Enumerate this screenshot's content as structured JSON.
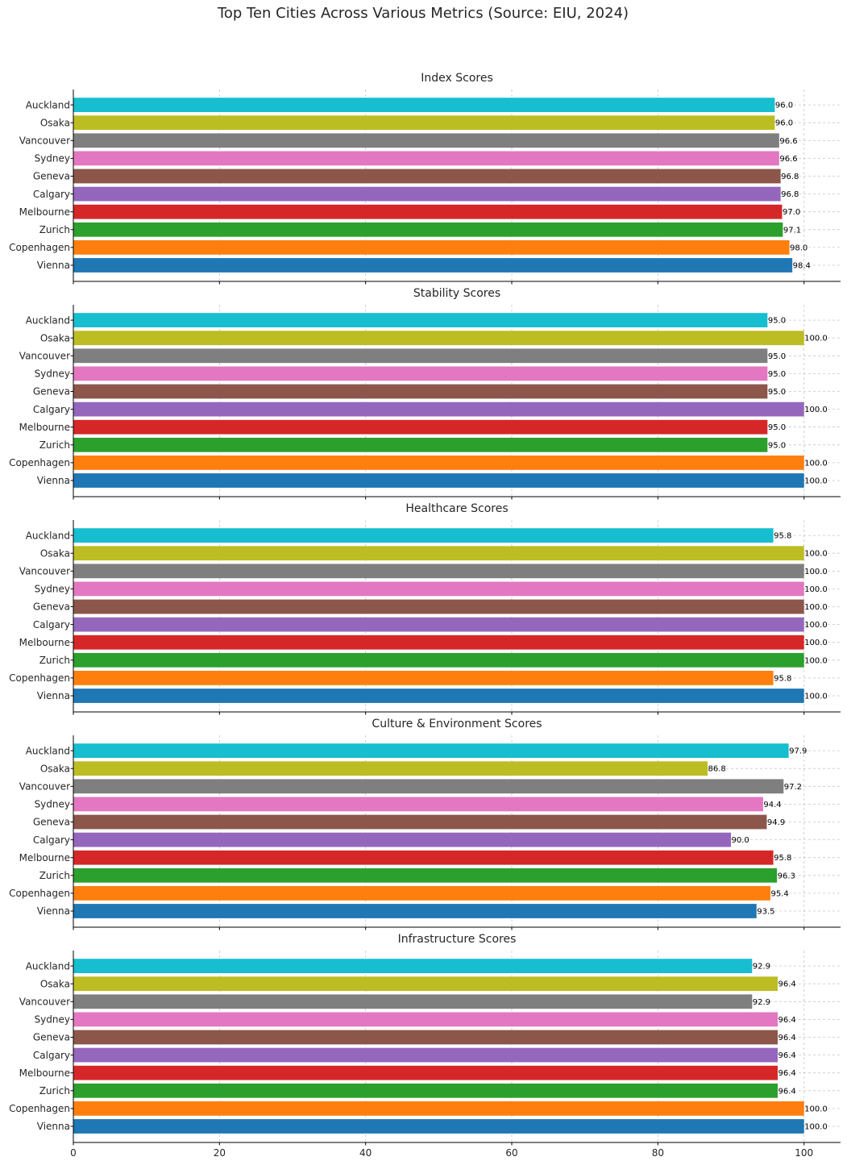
{
  "chart_data": {
    "type": "bar",
    "orientation": "horizontal",
    "title": "Top Ten Cities Across Various Metrics (Source: EIU, 2024)",
    "categories": [
      "Vienna",
      "Copenhagen",
      "Zurich",
      "Melbourne",
      "Calgary",
      "Geneva",
      "Sydney",
      "Vancouver",
      "Osaka",
      "Auckland"
    ],
    "colors": [
      "#1f77b4",
      "#ff7f0e",
      "#2ca02c",
      "#d62728",
      "#9467bd",
      "#8c564b",
      "#e377c2",
      "#7f7f7f",
      "#bcbd22",
      "#17becf"
    ],
    "xlim": [
      0,
      105
    ],
    "xticks": [
      0,
      20,
      40,
      60,
      80,
      100
    ],
    "grid": true,
    "panels": [
      {
        "title": "Index Scores",
        "values": [
          98.4,
          98.0,
          97.1,
          97.0,
          96.8,
          96.8,
          96.6,
          96.6,
          96.0,
          96.0
        ],
        "labels": [
          "98.4",
          "98.0",
          "97.1",
          "97.0",
          "96.8",
          "96.8",
          "96.6",
          "96.6",
          "96.0",
          "96.0"
        ]
      },
      {
        "title": "Stability Scores",
        "values": [
          100.0,
          100.0,
          95.0,
          95.0,
          100.0,
          95.0,
          95.0,
          95.0,
          100.0,
          95.0
        ],
        "labels": [
          "100.0",
          "100.0",
          "95.0",
          "95.0",
          "100.0",
          "95.0",
          "95.0",
          "95.0",
          "100.0",
          "95.0"
        ]
      },
      {
        "title": "Healthcare Scores",
        "values": [
          100.0,
          95.8,
          100.0,
          100.0,
          100.0,
          100.0,
          100.0,
          100.0,
          100.0,
          95.8
        ],
        "labels": [
          "100.0",
          "95.8",
          "100.0",
          "100.0",
          "100.0",
          "100.0",
          "100.0",
          "100.0",
          "100.0",
          "95.8"
        ]
      },
      {
        "title": "Culture & Environment Scores",
        "values": [
          93.5,
          95.4,
          96.3,
          95.8,
          90.0,
          94.9,
          94.4,
          97.2,
          86.8,
          97.9
        ],
        "labels": [
          "93.5",
          "95.4",
          "96.3",
          "95.8",
          "90.0",
          "94.9",
          "94.4",
          "97.2",
          "86.8",
          "97.9"
        ]
      },
      {
        "title": "Infrastructure Scores",
        "values": [
          100.0,
          100.0,
          96.4,
          96.4,
          96.4,
          96.4,
          96.4,
          92.9,
          96.4,
          92.9
        ],
        "labels": [
          "100.0",
          "100.0",
          "96.4",
          "96.4",
          "96.4",
          "96.4",
          "96.4",
          "92.9",
          "96.4",
          "92.9"
        ]
      }
    ]
  }
}
